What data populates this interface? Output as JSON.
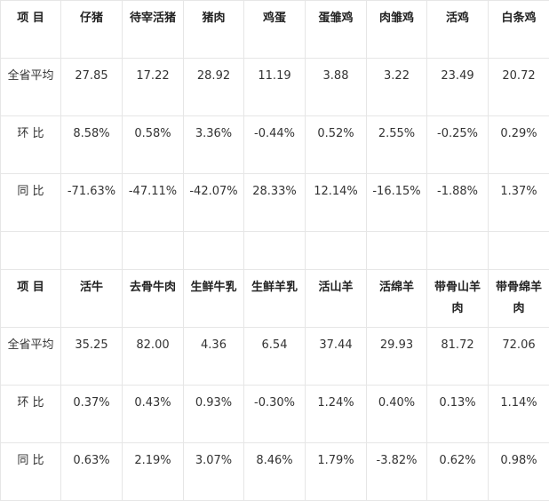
{
  "table1": {
    "header": [
      "项 目",
      "仔猪",
      "待宰活猪",
      "猪肉",
      "鸡蛋",
      "蛋雏鸡",
      "肉雏鸡",
      "活鸡",
      "白条鸡"
    ],
    "rows": [
      {
        "label": "全省平均",
        "values": [
          "27.85",
          "17.22",
          "28.92",
          "11.19",
          "3.88",
          "3.22",
          "23.49",
          "20.72"
        ]
      },
      {
        "label": "环 比",
        "values": [
          "8.58%",
          "0.58%",
          "3.36%",
          "-0.44%",
          "0.52%",
          "2.55%",
          "-0.25%",
          "0.29%"
        ]
      },
      {
        "label": "同 比",
        "values": [
          "-71.63%",
          "-47.11%",
          "-42.07%",
          "28.33%",
          "12.14%",
          "-16.15%",
          "-1.88%",
          "1.37%"
        ]
      }
    ]
  },
  "table2": {
    "header": [
      "项 目",
      "活牛",
      "去骨牛肉",
      "生鲜牛乳",
      "生鲜羊乳",
      "活山羊",
      "活绵羊",
      "带骨山羊肉",
      "带骨绵羊肉"
    ],
    "rows": [
      {
        "label": "全省平均",
        "values": [
          "35.25",
          "82.00",
          "4.36",
          "6.54",
          "37.44",
          "29.93",
          "81.72",
          "72.06"
        ]
      },
      {
        "label": "环 比",
        "values": [
          "0.37%",
          "0.43%",
          "0.93%",
          "-0.30%",
          "1.24%",
          "0.40%",
          "0.13%",
          "1.14%"
        ]
      },
      {
        "label": "同 比",
        "values": [
          "0.63%",
          "2.19%",
          "3.07%",
          "8.46%",
          "1.79%",
          "-3.82%",
          "0.62%",
          "0.98%"
        ]
      }
    ]
  }
}
